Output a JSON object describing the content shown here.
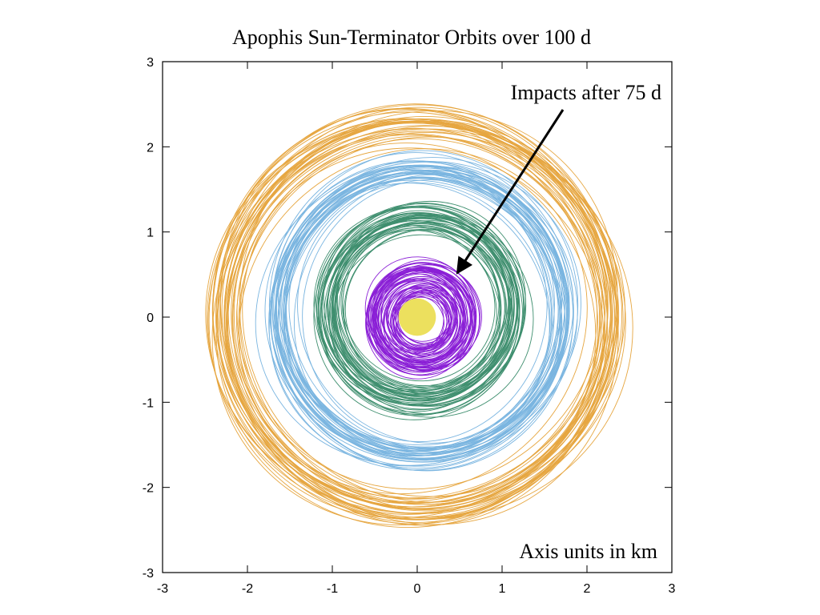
{
  "chart_data": {
    "type": "line",
    "title": "Apophis Sun-Terminator Orbits over 100 d",
    "xlabel": "",
    "ylabel": "",
    "xlim": [
      -3,
      3
    ],
    "ylim": [
      -3,
      3
    ],
    "xticks": [
      "-3",
      "-2",
      "-1",
      "0",
      "1",
      "2",
      "3"
    ],
    "yticks": [
      "-3",
      "-2",
      "-1",
      "0",
      "1",
      "2",
      "3"
    ],
    "grid": false,
    "series": [
      {
        "name": "orange orbits",
        "color": "#e6a640",
        "center": [
          0.0,
          0.0
        ],
        "radius_min": 2.08,
        "radius_max": 2.45,
        "n_loops": 40
      },
      {
        "name": "blue orbits",
        "color": "#7ab5e0",
        "center": [
          0.05,
          0.05
        ],
        "radius_min": 1.55,
        "radius_max": 1.78,
        "n_loops": 40
      },
      {
        "name": "green orbits",
        "color": "#3f8f6f",
        "center": [
          0.04,
          0.1
        ],
        "radius_min": 0.9,
        "radius_max": 1.22,
        "n_loops": 45
      },
      {
        "name": "purple orbits (impact)",
        "color": "#8a1fd6",
        "center": [
          0.05,
          -0.01
        ],
        "radius_min": 0.3,
        "radius_max": 0.65,
        "n_loops": 60
      }
    ],
    "body": {
      "name": "Apophis",
      "color": "#ece05e",
      "center": [
        0.0,
        0.0
      ],
      "radius": 0.22
    },
    "annotations": [
      {
        "text": "Impacts after 75 d",
        "position": "top-right",
        "arrow_from": [
          1.7,
          2.45
        ],
        "arrow_to": [
          0.45,
          0.5
        ]
      },
      {
        "text": "Axis units in km",
        "position": "bottom-right"
      }
    ]
  }
}
